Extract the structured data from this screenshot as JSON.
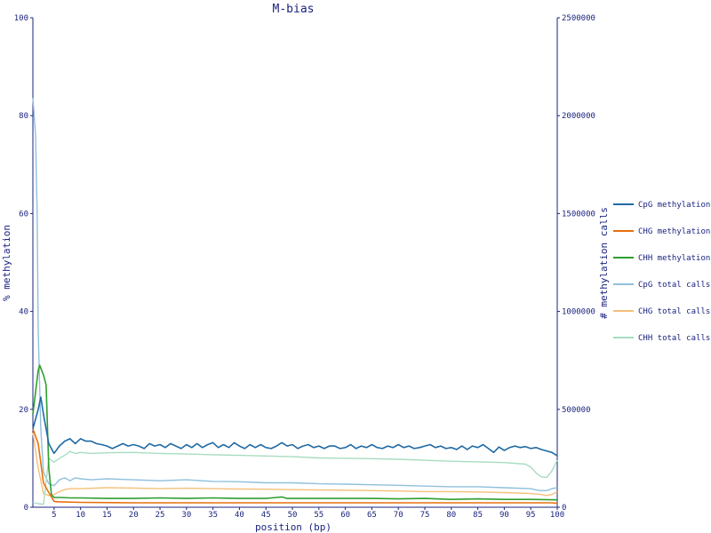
{
  "chart_data": {
    "type": "line",
    "title": "M-bias",
    "xlabel": "position (bp)",
    "ylabel": "% methylation",
    "y2label": "# methylation calls",
    "xlim": [
      1,
      100
    ],
    "ylim": [
      0,
      100
    ],
    "y2lim": [
      0,
      2500000
    ],
    "xticks": [
      5,
      10,
      15,
      20,
      25,
      30,
      35,
      40,
      45,
      50,
      55,
      60,
      65,
      70,
      75,
      80,
      85,
      90,
      95,
      100
    ],
    "yticks": [
      0,
      20,
      40,
      60,
      80,
      100
    ],
    "y2ticks": [
      0,
      500000,
      1000000,
      1500000,
      2000000,
      2500000
    ],
    "legend_position": "right",
    "series": [
      {
        "name": "CpG methylation",
        "axis": "left",
        "color": "#1f6aa5",
        "points": [
          [
            1,
            16
          ],
          [
            2,
            20
          ],
          [
            2.5,
            22.5
          ],
          [
            3,
            19
          ],
          [
            4,
            13
          ],
          [
            5,
            11
          ],
          [
            6,
            12.5
          ],
          [
            7,
            13.5
          ],
          [
            8,
            14
          ],
          [
            9,
            13
          ],
          [
            10,
            14
          ],
          [
            11,
            13.5
          ],
          [
            12,
            13.5
          ],
          [
            13,
            13
          ],
          [
            14,
            12.8
          ],
          [
            15,
            12.5
          ],
          [
            16,
            12
          ],
          [
            17,
            12.5
          ],
          [
            18,
            13
          ],
          [
            19,
            12.5
          ],
          [
            20,
            12.8
          ],
          [
            21,
            12.5
          ],
          [
            22,
            12
          ],
          [
            23,
            13
          ],
          [
            24,
            12.5
          ],
          [
            25,
            12.8
          ],
          [
            26,
            12.2
          ],
          [
            27,
            13
          ],
          [
            28,
            12.5
          ],
          [
            29,
            12
          ],
          [
            30,
            12.8
          ],
          [
            31,
            12.2
          ],
          [
            32,
            13
          ],
          [
            33,
            12.2
          ],
          [
            34,
            12.8
          ],
          [
            35,
            13.2
          ],
          [
            36,
            12.2
          ],
          [
            37,
            12.8
          ],
          [
            38,
            12.2
          ],
          [
            39,
            13.2
          ],
          [
            40,
            12.5
          ],
          [
            41,
            12
          ],
          [
            42,
            12.8
          ],
          [
            43,
            12.2
          ],
          [
            44,
            12.8
          ],
          [
            45,
            12.2
          ],
          [
            46,
            12
          ],
          [
            47,
            12.5
          ],
          [
            48,
            13.2
          ],
          [
            49,
            12.5
          ],
          [
            50,
            12.8
          ],
          [
            51,
            12
          ],
          [
            52,
            12.5
          ],
          [
            53,
            12.8
          ],
          [
            54,
            12.2
          ],
          [
            55,
            12.5
          ],
          [
            56,
            12
          ],
          [
            57,
            12.5
          ],
          [
            58,
            12.5
          ],
          [
            59,
            12
          ],
          [
            60,
            12.2
          ],
          [
            61,
            12.8
          ],
          [
            62,
            12
          ],
          [
            63,
            12.5
          ],
          [
            64,
            12.2
          ],
          [
            65,
            12.8
          ],
          [
            66,
            12.2
          ],
          [
            67,
            12
          ],
          [
            68,
            12.5
          ],
          [
            69,
            12.2
          ],
          [
            70,
            12.8
          ],
          [
            71,
            12.2
          ],
          [
            72,
            12.5
          ],
          [
            73,
            12
          ],
          [
            74,
            12.2
          ],
          [
            75,
            12.5
          ],
          [
            76,
            12.8
          ],
          [
            77,
            12.2
          ],
          [
            78,
            12.5
          ],
          [
            79,
            12
          ],
          [
            80,
            12.2
          ],
          [
            81,
            11.8
          ],
          [
            82,
            12.5
          ],
          [
            83,
            11.8
          ],
          [
            84,
            12.5
          ],
          [
            85,
            12.2
          ],
          [
            86,
            12.8
          ],
          [
            87,
            12
          ],
          [
            88,
            11.2
          ],
          [
            89,
            12.3
          ],
          [
            90,
            11.6
          ],
          [
            91,
            12.2
          ],
          [
            92,
            12.5
          ],
          [
            93,
            12.2
          ],
          [
            94,
            12.4
          ],
          [
            95,
            12
          ],
          [
            96,
            12.2
          ],
          [
            97,
            11.8
          ],
          [
            98,
            11.5
          ],
          [
            99,
            11.2
          ],
          [
            100,
            10.5
          ]
        ]
      },
      {
        "name": "CHG methylation",
        "axis": "left",
        "color": "#e6700d",
        "points": [
          [
            1,
            16
          ],
          [
            2,
            13
          ],
          [
            3,
            5
          ],
          [
            4,
            3
          ],
          [
            5,
            1.2
          ],
          [
            6,
            1.1
          ],
          [
            10,
            1
          ],
          [
            20,
            0.9
          ],
          [
            30,
            0.9
          ],
          [
            40,
            0.9
          ],
          [
            50,
            0.9
          ],
          [
            60,
            0.9
          ],
          [
            70,
            0.9
          ],
          [
            80,
            0.9
          ],
          [
            90,
            0.9
          ],
          [
            98,
            0.9
          ],
          [
            99,
            0.9
          ],
          [
            100,
            0.8
          ]
        ]
      },
      {
        "name": "CHH methylation",
        "axis": "left",
        "color": "#2e9e2e",
        "points": [
          [
            1,
            19
          ],
          [
            2,
            28
          ],
          [
            2.3,
            29
          ],
          [
            3,
            27
          ],
          [
            3.5,
            25
          ],
          [
            4,
            8
          ],
          [
            4.5,
            2.5
          ],
          [
            5,
            2
          ],
          [
            6,
            2
          ],
          [
            8,
            1.9
          ],
          [
            10,
            1.9
          ],
          [
            15,
            1.8
          ],
          [
            20,
            1.8
          ],
          [
            25,
            1.9
          ],
          [
            30,
            1.8
          ],
          [
            35,
            1.9
          ],
          [
            40,
            1.8
          ],
          [
            45,
            1.8
          ],
          [
            47,
            2
          ],
          [
            48,
            2.1
          ],
          [
            49,
            1.8
          ],
          [
            55,
            1.8
          ],
          [
            60,
            1.8
          ],
          [
            65,
            1.8
          ],
          [
            70,
            1.7
          ],
          [
            75,
            1.8
          ],
          [
            80,
            1.6
          ],
          [
            85,
            1.7
          ],
          [
            90,
            1.6
          ],
          [
            95,
            1.6
          ],
          [
            100,
            1.5
          ]
        ]
      },
      {
        "name": "CpG total calls",
        "axis": "right",
        "color": "#8fc0dc",
        "points": [
          [
            1,
            2090000
          ],
          [
            1.5,
            1900000
          ],
          [
            1.8,
            1500000
          ],
          [
            2,
            900000
          ],
          [
            2.5,
            400000
          ],
          [
            3,
            180000
          ],
          [
            4,
            120000
          ],
          [
            5,
            110000
          ],
          [
            6,
            140000
          ],
          [
            7,
            150000
          ],
          [
            8,
            135000
          ],
          [
            9,
            150000
          ],
          [
            10,
            145000
          ],
          [
            12,
            140000
          ],
          [
            15,
            145000
          ],
          [
            20,
            140000
          ],
          [
            25,
            135000
          ],
          [
            30,
            140000
          ],
          [
            35,
            132000
          ],
          [
            40,
            130000
          ],
          [
            45,
            125000
          ],
          [
            50,
            125000
          ],
          [
            55,
            120000
          ],
          [
            60,
            118000
          ],
          [
            65,
            115000
          ],
          [
            70,
            112000
          ],
          [
            75,
            108000
          ],
          [
            80,
            105000
          ],
          [
            85,
            105000
          ],
          [
            90,
            100000
          ],
          [
            95,
            95000
          ],
          [
            96,
            88000
          ],
          [
            97,
            85000
          ],
          [
            98,
            85000
          ],
          [
            99,
            95000
          ],
          [
            100,
            100000
          ]
        ]
      },
      {
        "name": "CHG total calls",
        "axis": "right",
        "color": "#f5bf7a",
        "points": [
          [
            1,
            380000
          ],
          [
            2,
            200000
          ],
          [
            3,
            70000
          ],
          [
            4,
            60000
          ],
          [
            5,
            65000
          ],
          [
            6,
            80000
          ],
          [
            7,
            90000
          ],
          [
            8,
            95000
          ],
          [
            10,
            95000
          ],
          [
            15,
            100000
          ],
          [
            20,
            98000
          ],
          [
            25,
            95000
          ],
          [
            30,
            97000
          ],
          [
            35,
            95000
          ],
          [
            40,
            93000
          ],
          [
            45,
            92000
          ],
          [
            50,
            90000
          ],
          [
            55,
            88000
          ],
          [
            60,
            87000
          ],
          [
            65,
            85000
          ],
          [
            70,
            83000
          ],
          [
            75,
            80000
          ],
          [
            80,
            80000
          ],
          [
            85,
            78000
          ],
          [
            90,
            75000
          ],
          [
            95,
            70000
          ],
          [
            97,
            65000
          ],
          [
            98,
            60000
          ],
          [
            99,
            65000
          ],
          [
            100,
            80000
          ]
        ]
      },
      {
        "name": "CHH total calls",
        "axis": "right",
        "color": "#a8dcc0",
        "points": [
          [
            1,
            25000
          ],
          [
            2,
            18000
          ],
          [
            3,
            15000
          ],
          [
            4,
            250000
          ],
          [
            5,
            230000
          ],
          [
            6,
            250000
          ],
          [
            7,
            265000
          ],
          [
            8,
            285000
          ],
          [
            9,
            275000
          ],
          [
            10,
            280000
          ],
          [
            12,
            275000
          ],
          [
            15,
            278000
          ],
          [
            20,
            280000
          ],
          [
            25,
            275000
          ],
          [
            30,
            272000
          ],
          [
            35,
            268000
          ],
          [
            40,
            265000
          ],
          [
            45,
            262000
          ],
          [
            50,
            258000
          ],
          [
            55,
            252000
          ],
          [
            60,
            250000
          ],
          [
            65,
            248000
          ],
          [
            70,
            245000
          ],
          [
            75,
            240000
          ],
          [
            80,
            235000
          ],
          [
            85,
            232000
          ],
          [
            90,
            228000
          ],
          [
            94,
            220000
          ],
          [
            95,
            205000
          ],
          [
            96,
            175000
          ],
          [
            97,
            155000
          ],
          [
            98,
            152000
          ],
          [
            99,
            185000
          ],
          [
            100,
            240000
          ]
        ]
      }
    ]
  }
}
